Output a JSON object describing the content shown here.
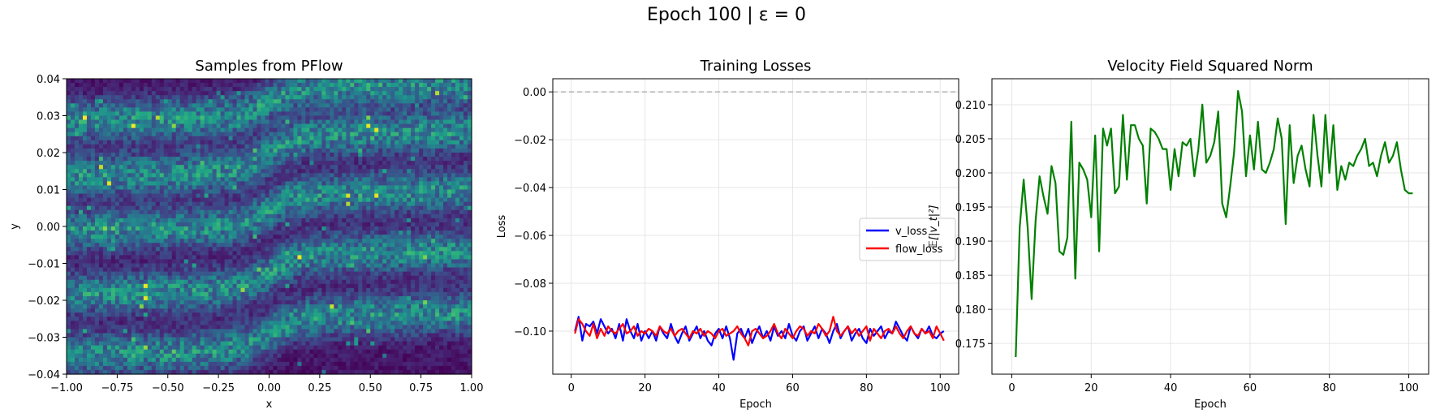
{
  "suptitle": "Epoch 100 | ε = 0",
  "chart_data": [
    {
      "type": "heatmap",
      "title": "Samples from PFlow",
      "xlabel": "x",
      "ylabel": "y",
      "xlim": [
        -1.0,
        1.0
      ],
      "ylim": [
        -0.04,
        0.04
      ],
      "colormap": "viridis",
      "xticks": [
        -1.0,
        -0.75,
        -0.5,
        -0.25,
        0.0,
        0.25,
        0.5,
        0.75,
        1.0
      ],
      "xtick_labels": [
        "−1.00",
        "−0.75",
        "−0.50",
        "−0.25",
        "0.00",
        "0.25",
        "0.50",
        "0.75",
        "1.00"
      ],
      "yticks": [
        -0.04,
        -0.03,
        -0.02,
        -0.01,
        0.0,
        0.01,
        0.02,
        0.03,
        0.04
      ],
      "ytick_labels": [
        "−0.04",
        "−0.03",
        "−0.02",
        "−0.01",
        "0.00",
        "0.01",
        "0.02",
        "0.03",
        "0.04"
      ],
      "bands_left_center_y": [
        -0.0335,
        -0.017,
        0.0,
        0.0148,
        0.0297
      ],
      "bands_right_center_y": [
        -0.0245,
        -0.0078,
        0.0085,
        0.0245,
        0.0375
      ],
      "transition_x": 0.0,
      "grid": false
    },
    {
      "type": "line",
      "title": "Training Losses",
      "xlabel": "Epoch",
      "ylabel": "Loss",
      "xlim": [
        -5,
        105
      ],
      "ylim": [
        -0.118,
        0.0055
      ],
      "xticks": [
        0,
        20,
        40,
        60,
        80,
        100
      ],
      "xtick_labels": [
        "0",
        "20",
        "40",
        "60",
        "80",
        "100"
      ],
      "yticks": [
        0.0,
        -0.02,
        -0.04,
        -0.06,
        -0.08,
        -0.1
      ],
      "ytick_labels": [
        "0.00",
        "−0.02",
        "−0.04",
        "−0.06",
        "−0.08",
        "−0.10"
      ],
      "hline": {
        "y": 0.0,
        "style": "dashed",
        "color": "#aaaaaa"
      },
      "grid": true,
      "legend_position": "center-right",
      "series": [
        {
          "name": "v_loss",
          "color": "#0000ff",
          "values": [
            -0.1,
            -0.094,
            -0.104,
            -0.097,
            -0.098,
            -0.096,
            -0.101,
            -0.095,
            -0.098,
            -0.101,
            -0.099,
            -0.103,
            -0.097,
            -0.104,
            -0.095,
            -0.1,
            -0.103,
            -0.097,
            -0.104,
            -0.1,
            -0.103,
            -0.1,
            -0.104,
            -0.098,
            -0.101,
            -0.103,
            -0.097,
            -0.102,
            -0.105,
            -0.101,
            -0.098,
            -0.104,
            -0.101,
            -0.098,
            -0.103,
            -0.1,
            -0.104,
            -0.106,
            -0.101,
            -0.099,
            -0.103,
            -0.098,
            -0.103,
            -0.112,
            -0.101,
            -0.099,
            -0.103,
            -0.099,
            -0.105,
            -0.101,
            -0.098,
            -0.103,
            -0.1,
            -0.104,
            -0.098,
            -0.102,
            -0.1,
            -0.103,
            -0.097,
            -0.102,
            -0.104,
            -0.1,
            -0.098,
            -0.104,
            -0.101,
            -0.098,
            -0.103,
            -0.099,
            -0.101,
            -0.105,
            -0.1,
            -0.097,
            -0.103,
            -0.1,
            -0.098,
            -0.104,
            -0.101,
            -0.099,
            -0.103,
            -0.105,
            -0.099,
            -0.102,
            -0.1,
            -0.098,
            -0.103,
            -0.1,
            -0.101,
            -0.096,
            -0.099,
            -0.102,
            -0.104,
            -0.098,
            -0.101,
            -0.103,
            -0.099,
            -0.101,
            -0.098,
            -0.102,
            -0.103,
            -0.101,
            -0.1
          ]
        },
        {
          "name": "flow_loss",
          "color": "#ff0000",
          "values": [
            -0.101,
            -0.095,
            -0.097,
            -0.1,
            -0.102,
            -0.097,
            -0.103,
            -0.099,
            -0.102,
            -0.098,
            -0.1,
            -0.101,
            -0.099,
            -0.097,
            -0.101,
            -0.1,
            -0.098,
            -0.102,
            -0.1,
            -0.101,
            -0.099,
            -0.1,
            -0.102,
            -0.098,
            -0.1,
            -0.101,
            -0.099,
            -0.102,
            -0.1,
            -0.099,
            -0.101,
            -0.103,
            -0.1,
            -0.101,
            -0.099,
            -0.102,
            -0.1,
            -0.101,
            -0.103,
            -0.1,
            -0.099,
            -0.102,
            -0.101,
            -0.1,
            -0.098,
            -0.101,
            -0.103,
            -0.106,
            -0.1,
            -0.099,
            -0.101,
            -0.103,
            -0.102,
            -0.1,
            -0.097,
            -0.101,
            -0.103,
            -0.099,
            -0.101,
            -0.103,
            -0.1,
            -0.098,
            -0.099,
            -0.102,
            -0.1,
            -0.101,
            -0.097,
            -0.099,
            -0.102,
            -0.1,
            -0.094,
            -0.1,
            -0.102,
            -0.1,
            -0.098,
            -0.101,
            -0.099,
            -0.102,
            -0.1,
            -0.098,
            -0.104,
            -0.099,
            -0.101,
            -0.103,
            -0.1,
            -0.099,
            -0.101,
            -0.098,
            -0.101,
            -0.103,
            -0.1,
            -0.098,
            -0.101,
            -0.102,
            -0.099,
            -0.101,
            -0.1,
            -0.103,
            -0.098,
            -0.101,
            -0.104
          ]
        }
      ]
    },
    {
      "type": "line",
      "title": "Velocity Field Squared Norm",
      "xlabel": "Epoch",
      "ylabel": "𝔼[|v_t|²]",
      "ylabel_math": true,
      "xlim": [
        -5,
        105
      ],
      "ylim": [
        0.1705,
        0.2138
      ],
      "xticks": [
        0,
        20,
        40,
        60,
        80,
        100
      ],
      "xtick_labels": [
        "0",
        "20",
        "40",
        "60",
        "80",
        "100"
      ],
      "yticks": [
        0.175,
        0.18,
        0.185,
        0.19,
        0.195,
        0.2,
        0.205,
        0.21
      ],
      "ytick_labels": [
        "0.175",
        "0.180",
        "0.185",
        "0.190",
        "0.195",
        "0.200",
        "0.205",
        "0.210"
      ],
      "grid": true,
      "series": [
        {
          "color": "#008000",
          "values": [
            0.173,
            0.192,
            0.199,
            0.192,
            0.1815,
            0.193,
            0.1995,
            0.1965,
            0.194,
            0.201,
            0.1985,
            0.1885,
            0.188,
            0.1905,
            0.2075,
            0.1845,
            0.2015,
            0.2005,
            0.199,
            0.1935,
            0.2055,
            0.1885,
            0.2065,
            0.204,
            0.2065,
            0.197,
            0.198,
            0.2085,
            0.199,
            0.207,
            0.207,
            0.205,
            0.204,
            0.1955,
            0.2065,
            0.206,
            0.205,
            0.2035,
            0.2035,
            0.1975,
            0.2035,
            0.1995,
            0.2045,
            0.204,
            0.205,
            0.1995,
            0.2035,
            0.21,
            0.2015,
            0.2025,
            0.2045,
            0.209,
            0.1955,
            0.1935,
            0.198,
            0.203,
            0.212,
            0.209,
            0.1995,
            0.2055,
            0.2005,
            0.2075,
            0.2005,
            0.2,
            0.2015,
            0.2035,
            0.208,
            0.205,
            0.1925,
            0.207,
            0.1985,
            0.2025,
            0.204,
            0.2005,
            0.198,
            0.2085,
            0.2025,
            0.198,
            0.2085,
            0.2,
            0.207,
            0.1975,
            0.201,
            0.199,
            0.2015,
            0.201,
            0.2025,
            0.2035,
            0.205,
            0.201,
            0.2015,
            0.1995,
            0.2025,
            0.2045,
            0.2015,
            0.2025,
            0.2045,
            0.2005,
            0.1975,
            0.197,
            0.197
          ]
        }
      ]
    }
  ]
}
